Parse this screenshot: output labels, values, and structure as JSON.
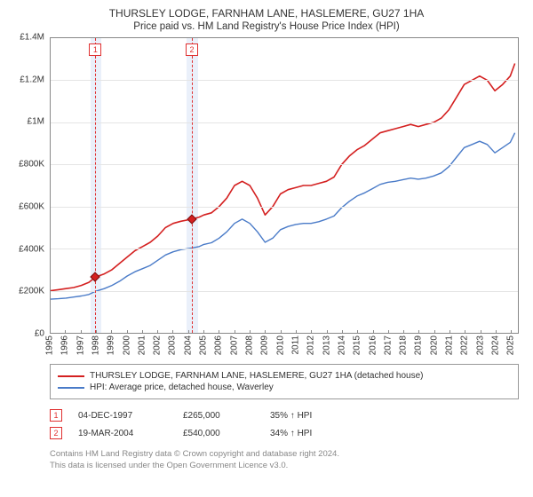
{
  "title": "THURSLEY LODGE, FARNHAM LANE, HASLEMERE, GU27 1HA",
  "subtitle": "Price paid vs. HM Land Registry's House Price Index (HPI)",
  "chart": {
    "type": "line",
    "background_color": "#ffffff",
    "grid_color": "#e5e5e5",
    "axis_color": "#888888",
    "label_fontsize": 10,
    "x": {
      "min": 1995,
      "max": 2025.5,
      "ticks": [
        1995,
        1996,
        1997,
        1998,
        1999,
        2000,
        2001,
        2002,
        2003,
        2004,
        2005,
        2006,
        2007,
        2008,
        2009,
        2010,
        2011,
        2012,
        2013,
        2014,
        2015,
        2016,
        2017,
        2018,
        2019,
        2020,
        2021,
        2022,
        2023,
        2024,
        2025
      ]
    },
    "y": {
      "min": 0,
      "max": 1400000,
      "step": 200000,
      "unit_prefix": "£",
      "labels": [
        "£0",
        "£200K",
        "£400K",
        "£600K",
        "£800K",
        "£1M",
        "£1.2M",
        "£1.4M"
      ]
    },
    "series": [
      {
        "key": "property",
        "label": "THURSLEY LODGE, FARNHAM LANE, HASLEMERE, GU27 1HA (detached house)",
        "color": "#d42020",
        "line_width": 1.6,
        "points": [
          [
            1995,
            200000
          ],
          [
            1995.5,
            205000
          ],
          [
            1996,
            210000
          ],
          [
            1996.5,
            215000
          ],
          [
            1997,
            225000
          ],
          [
            1997.5,
            240000
          ],
          [
            1997.92,
            265000
          ],
          [
            1998.5,
            280000
          ],
          [
            1999,
            300000
          ],
          [
            1999.5,
            330000
          ],
          [
            2000,
            360000
          ],
          [
            2000.5,
            390000
          ],
          [
            2001,
            410000
          ],
          [
            2001.5,
            430000
          ],
          [
            2002,
            460000
          ],
          [
            2002.5,
            500000
          ],
          [
            2003,
            520000
          ],
          [
            2003.5,
            530000
          ],
          [
            2004.22,
            540000
          ],
          [
            2004.7,
            550000
          ],
          [
            2005,
            560000
          ],
          [
            2005.5,
            570000
          ],
          [
            2006,
            600000
          ],
          [
            2006.5,
            640000
          ],
          [
            2007,
            700000
          ],
          [
            2007.5,
            720000
          ],
          [
            2008,
            700000
          ],
          [
            2008.5,
            640000
          ],
          [
            2009,
            560000
          ],
          [
            2009.5,
            600000
          ],
          [
            2010,
            660000
          ],
          [
            2010.5,
            680000
          ],
          [
            2011,
            690000
          ],
          [
            2011.5,
            700000
          ],
          [
            2012,
            700000
          ],
          [
            2012.5,
            710000
          ],
          [
            2013,
            720000
          ],
          [
            2013.5,
            740000
          ],
          [
            2014,
            800000
          ],
          [
            2014.5,
            840000
          ],
          [
            2015,
            870000
          ],
          [
            2015.5,
            890000
          ],
          [
            2016,
            920000
          ],
          [
            2016.5,
            950000
          ],
          [
            2017,
            960000
          ],
          [
            2017.5,
            970000
          ],
          [
            2018,
            980000
          ],
          [
            2018.5,
            990000
          ],
          [
            2019,
            980000
          ],
          [
            2019.5,
            990000
          ],
          [
            2020,
            1000000
          ],
          [
            2020.5,
            1020000
          ],
          [
            2021,
            1060000
          ],
          [
            2021.5,
            1120000
          ],
          [
            2022,
            1180000
          ],
          [
            2022.5,
            1200000
          ],
          [
            2023,
            1220000
          ],
          [
            2023.5,
            1200000
          ],
          [
            2024,
            1150000
          ],
          [
            2024.5,
            1180000
          ],
          [
            2025,
            1220000
          ],
          [
            2025.3,
            1280000
          ]
        ]
      },
      {
        "key": "hpi",
        "label": "HPI: Average price, detached house, Waverley",
        "color": "#4a7bc8",
        "line_width": 1.4,
        "points": [
          [
            1995,
            160000
          ],
          [
            1995.5,
            162000
          ],
          [
            1996,
            165000
          ],
          [
            1996.5,
            170000
          ],
          [
            1997,
            175000
          ],
          [
            1997.5,
            182000
          ],
          [
            1997.92,
            197000
          ],
          [
            1998.5,
            210000
          ],
          [
            1999,
            225000
          ],
          [
            1999.5,
            245000
          ],
          [
            2000,
            270000
          ],
          [
            2000.5,
            290000
          ],
          [
            2001,
            305000
          ],
          [
            2001.5,
            320000
          ],
          [
            2002,
            345000
          ],
          [
            2002.5,
            370000
          ],
          [
            2003,
            385000
          ],
          [
            2003.5,
            395000
          ],
          [
            2004.22,
            403000
          ],
          [
            2004.7,
            410000
          ],
          [
            2005,
            420000
          ],
          [
            2005.5,
            428000
          ],
          [
            2006,
            450000
          ],
          [
            2006.5,
            480000
          ],
          [
            2007,
            520000
          ],
          [
            2007.5,
            540000
          ],
          [
            2008,
            520000
          ],
          [
            2008.5,
            480000
          ],
          [
            2009,
            430000
          ],
          [
            2009.5,
            450000
          ],
          [
            2010,
            490000
          ],
          [
            2010.5,
            505000
          ],
          [
            2011,
            515000
          ],
          [
            2011.5,
            520000
          ],
          [
            2012,
            520000
          ],
          [
            2012.5,
            528000
          ],
          [
            2013,
            540000
          ],
          [
            2013.5,
            555000
          ],
          [
            2014,
            595000
          ],
          [
            2014.5,
            625000
          ],
          [
            2015,
            650000
          ],
          [
            2015.5,
            665000
          ],
          [
            2016,
            685000
          ],
          [
            2016.5,
            705000
          ],
          [
            2017,
            715000
          ],
          [
            2017.5,
            720000
          ],
          [
            2018,
            728000
          ],
          [
            2018.5,
            735000
          ],
          [
            2019,
            730000
          ],
          [
            2019.5,
            735000
          ],
          [
            2020,
            745000
          ],
          [
            2020.5,
            760000
          ],
          [
            2021,
            790000
          ],
          [
            2021.5,
            835000
          ],
          [
            2022,
            880000
          ],
          [
            2022.5,
            895000
          ],
          [
            2023,
            910000
          ],
          [
            2023.5,
            895000
          ],
          [
            2024,
            855000
          ],
          [
            2024.5,
            880000
          ],
          [
            2025,
            905000
          ],
          [
            2025.3,
            950000
          ]
        ]
      }
    ],
    "highlight_bands": [
      {
        "start": 1997.6,
        "end": 1998.3,
        "color": "#eaf0fa"
      },
      {
        "start": 2003.9,
        "end": 2004.6,
        "color": "#eaf0fa"
      }
    ],
    "highlight_lines": [
      {
        "x": 1997.92,
        "color": "#e03030",
        "dash": "4,3",
        "marker": "1"
      },
      {
        "x": 2004.22,
        "color": "#e03030",
        "dash": "4,3",
        "marker": "2"
      }
    ],
    "transaction_markers": [
      {
        "x": 1997.92,
        "y": 265000,
        "fill": "#d42020",
        "border": "#7a1010"
      },
      {
        "x": 2004.22,
        "y": 540000,
        "fill": "#d42020",
        "border": "#7a1010"
      }
    ]
  },
  "legend": [
    {
      "color": "#d42020",
      "label": "THURSLEY LODGE, FARNHAM LANE, HASLEMERE, GU27 1HA (detached house)"
    },
    {
      "color": "#4a7bc8",
      "label": "HPI: Average price, detached house, Waverley"
    }
  ],
  "transactions": [
    {
      "marker": "1",
      "date": "04-DEC-1997",
      "price": "£265,000",
      "change": "35% ↑ HPI"
    },
    {
      "marker": "2",
      "date": "19-MAR-2004",
      "price": "£540,000",
      "change": "34% ↑ HPI"
    }
  ],
  "footnote_line1": "Contains HM Land Registry data © Crown copyright and database right 2024.",
  "footnote_line2": "This data is licensed under the Open Government Licence v3.0."
}
